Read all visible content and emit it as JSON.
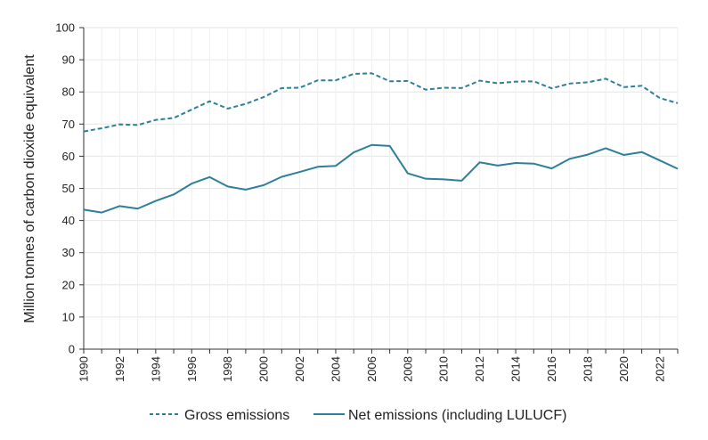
{
  "chart_data": {
    "type": "line",
    "title": "",
    "xlabel": "",
    "ylabel": "Million tonnes of carbon dioxide equivalent",
    "x": [
      1990,
      1991,
      1992,
      1993,
      1994,
      1995,
      1996,
      1997,
      1998,
      1999,
      2000,
      2001,
      2002,
      2003,
      2004,
      2005,
      2006,
      2007,
      2008,
      2009,
      2010,
      2011,
      2012,
      2013,
      2014,
      2015,
      2016,
      2017,
      2018,
      2019,
      2020,
      2021,
      2022,
      2023
    ],
    "xlim": [
      1990,
      2023
    ],
    "ylim": [
      0,
      100
    ],
    "yticks": [
      0,
      10,
      20,
      30,
      40,
      50,
      60,
      70,
      80,
      90,
      100
    ],
    "xtick_labels": [
      "1990",
      "1992",
      "1994",
      "1996",
      "1998",
      "2000",
      "2002",
      "2004",
      "2006",
      "2008",
      "2010",
      "2012",
      "2014",
      "2016",
      "2018",
      "2020",
      "2022"
    ],
    "grid": true,
    "legend_position": "bottom",
    "series": [
      {
        "name": "Gross emissions",
        "style": "dashed",
        "color": "#2E7F9A",
        "values": [
          67.7,
          68.7,
          69.9,
          69.7,
          71.3,
          71.9,
          74.5,
          77.1,
          74.8,
          76.3,
          78.4,
          81.2,
          81.3,
          83.6,
          83.6,
          85.6,
          85.8,
          83.3,
          83.4,
          80.7,
          81.3,
          81.2,
          83.5,
          82.7,
          83.2,
          83.3,
          81.1,
          82.6,
          83.0,
          84.1,
          81.5,
          81.9,
          78.1,
          76.5
        ]
      },
      {
        "name": "Net emissions (including LULUCF)",
        "style": "solid",
        "color": "#2E7F9A",
        "values": [
          43.4,
          42.5,
          44.5,
          43.7,
          46.1,
          48.1,
          51.5,
          53.5,
          50.6,
          49.6,
          51.0,
          53.6,
          55.1,
          56.7,
          57.0,
          61.2,
          63.5,
          63.2,
          54.7,
          53.0,
          52.8,
          52.4,
          58.1,
          57.1,
          57.9,
          57.7,
          56.2,
          59.2,
          60.5,
          62.5,
          60.4,
          61.3,
          58.7,
          56.1
        ]
      }
    ]
  }
}
